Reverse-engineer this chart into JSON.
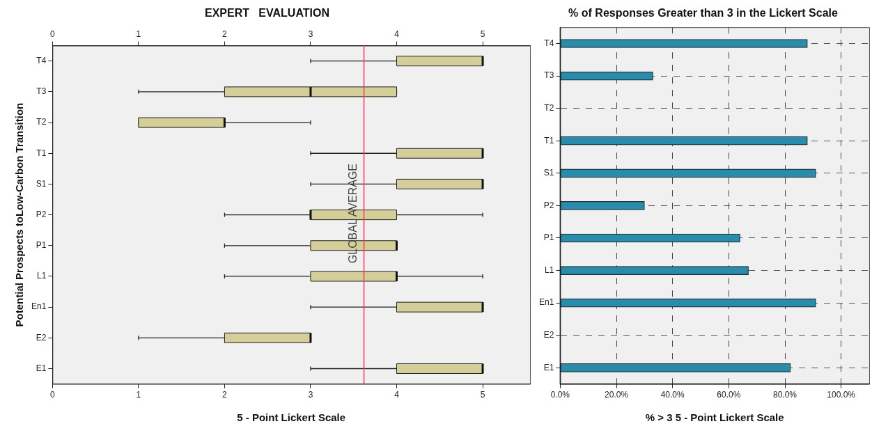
{
  "chart_data": [
    {
      "type": "box",
      "orientation": "horizontal",
      "title": "EXPERT   EVALUATION",
      "xlabel": "5 - Point Lickert Scale",
      "ylabel": "Potential Prospects toLow-Carbon Transition",
      "categories": [
        "T4",
        "T3",
        "T2",
        "T1",
        "S1",
        "P2",
        "P1",
        "L1",
        "En1",
        "E2",
        "E1"
      ],
      "boxes": [
        {
          "low": 3,
          "q1": 4,
          "median": 5,
          "q3": 5,
          "high": 5
        },
        {
          "low": 1,
          "q1": 2,
          "median": 3,
          "q3": 4,
          "high": 4
        },
        {
          "low": 1,
          "q1": 1,
          "median": 2,
          "q3": 2,
          "high": 3
        },
        {
          "low": 3,
          "q1": 4,
          "median": 5,
          "q3": 5,
          "high": 5
        },
        {
          "low": 3,
          "q1": 4,
          "median": 5,
          "q3": 5,
          "high": 5
        },
        {
          "low": 2,
          "q1": 3,
          "median": 3,
          "q3": 4,
          "high": 5
        },
        {
          "low": 2,
          "q1": 3,
          "median": 4,
          "q3": 4,
          "high": 4
        },
        {
          "low": 2,
          "q1": 3,
          "median": 4,
          "q3": 4,
          "high": 5
        },
        {
          "low": 3,
          "q1": 4,
          "median": 5,
          "q3": 5,
          "high": 5
        },
        {
          "low": 1,
          "q1": 2,
          "median": 3,
          "q3": 3,
          "high": 3
        },
        {
          "low": 3,
          "q1": 4,
          "median": 5,
          "q3": 5,
          "high": 5
        }
      ],
      "color": "#d4cf9a",
      "xlim": [
        0,
        5.55
      ],
      "xticks": [
        0,
        1,
        2,
        3,
        4,
        5
      ],
      "x2lim": [
        0,
        5.55
      ],
      "x2ticks": [
        0,
        1,
        2,
        3,
        4,
        5
      ],
      "ref_lines": [
        {
          "axis": "x",
          "value": 3.62,
          "label": "GLOBAL AVERAGE",
          "color": "#ff3355"
        }
      ],
      "grid": false,
      "legend": false
    },
    {
      "type": "bar",
      "orientation": "horizontal",
      "title": "% of Responses Greater than 3 in the Lickert Scale",
      "xlabel": "% > 3 5 - Point Lickert Scale",
      "categories": [
        "T4",
        "T3",
        "T2",
        "T1",
        "S1",
        "P2",
        "P1",
        "L1",
        "En1",
        "E2",
        "E1"
      ],
      "values": [
        88,
        33,
        0,
        88,
        91,
        30,
        64,
        67,
        91,
        0,
        82
      ],
      "color": "#2a8cab",
      "xlim": [
        0,
        110
      ],
      "xticks": [
        {
          "value": 0,
          "label": "0.0%"
        },
        {
          "value": 20,
          "label": "20.0%"
        },
        {
          "value": 40,
          "label": "40.0%"
        },
        {
          "value": 60,
          "label": "60.0%"
        },
        {
          "value": 80,
          "label": "80.0%"
        },
        {
          "value": 100,
          "label": "100.0%"
        }
      ],
      "grid": true,
      "line_style": "dashed",
      "legend": false
    }
  ]
}
